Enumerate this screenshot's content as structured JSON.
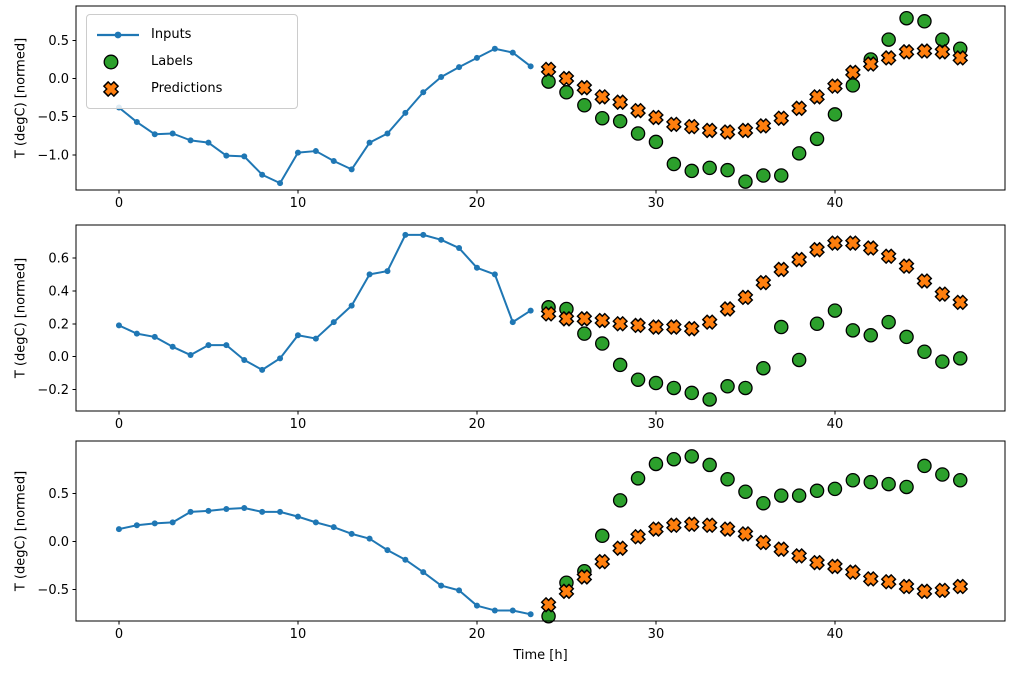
{
  "figure": {
    "background": "#ffffff"
  },
  "axes": {
    "ylabel": "T (degC) [normed]",
    "xlabel": "Time [h]",
    "x_ticks": [
      0,
      10,
      20,
      30,
      40
    ],
    "x_tick_labels": [
      "0",
      "10",
      "20",
      "30",
      "40"
    ],
    "frame_color": "#000000",
    "tick_label_color": "#000000"
  },
  "legend": {
    "items": [
      {
        "label": "Inputs",
        "marker": "line-dot",
        "color": "#1f77b4"
      },
      {
        "label": "Labels",
        "marker": "circle",
        "color": "#2ca02c",
        "edge": "#000000"
      },
      {
        "label": "Predictions",
        "marker": "X",
        "color": "#ff7f0e",
        "edge": "#000000"
      }
    ]
  },
  "chart_data": [
    {
      "type": "line+scatter",
      "name": "subplot-1",
      "ylabel": "T (degC) [normed]",
      "xlabel": "",
      "xlim": [
        -2.4,
        49.5
      ],
      "ylim": [
        -1.46,
        0.95
      ],
      "y_ticks": [
        0.5,
        0.0,
        -0.5,
        -1.0
      ],
      "y_tick_labels": [
        "0.5",
        "0.0",
        "−0.5",
        "−1.0"
      ],
      "series": [
        {
          "name": "Inputs",
          "type": "line",
          "marker": "dot",
          "color": "#1f77b4",
          "x": [
            0,
            1,
            2,
            3,
            4,
            5,
            6,
            7,
            8,
            9,
            10,
            11,
            12,
            13,
            14,
            15,
            16,
            17,
            18,
            19,
            20,
            21,
            22,
            23
          ],
          "y": [
            -0.38,
            -0.57,
            -0.73,
            -0.72,
            -0.81,
            -0.84,
            -1.01,
            -1.02,
            -1.26,
            -1.37,
            -0.97,
            -0.95,
            -1.08,
            -1.19,
            -0.84,
            -0.72,
            -0.45,
            -0.18,
            0.02,
            0.15,
            0.27,
            0.39,
            0.34,
            0.16
          ]
        },
        {
          "name": "Labels",
          "type": "scatter",
          "marker": "circle",
          "color": "#2ca02c",
          "edge": "#000000",
          "x": [
            24,
            25,
            26,
            27,
            28,
            29,
            30,
            31,
            32,
            33,
            34,
            35,
            36,
            37,
            38,
            39,
            40,
            41,
            42,
            43,
            44,
            45,
            46,
            47
          ],
          "y": [
            -0.04,
            -0.18,
            -0.35,
            -0.52,
            -0.56,
            -0.72,
            -0.83,
            -1.12,
            -1.21,
            -1.17,
            -1.2,
            -1.35,
            -1.27,
            -1.27,
            -0.98,
            -0.79,
            -0.47,
            -0.09,
            0.25,
            0.51,
            0.79,
            0.75,
            0.51,
            0.39
          ]
        },
        {
          "name": "Predictions",
          "type": "scatter",
          "marker": "X",
          "color": "#ff7f0e",
          "edge": "#000000",
          "x": [
            24,
            25,
            26,
            27,
            28,
            29,
            30,
            31,
            32,
            33,
            34,
            35,
            36,
            37,
            38,
            39,
            40,
            41,
            42,
            43,
            44,
            45,
            46,
            47
          ],
          "y": [
            0.12,
            0.0,
            -0.12,
            -0.24,
            -0.31,
            -0.42,
            -0.51,
            -0.6,
            -0.63,
            -0.68,
            -0.7,
            -0.68,
            -0.62,
            -0.52,
            -0.39,
            -0.24,
            -0.1,
            0.08,
            0.19,
            0.27,
            0.35,
            0.36,
            0.35,
            0.27
          ]
        }
      ]
    },
    {
      "type": "line+scatter",
      "name": "subplot-2",
      "ylabel": "T (degC) [normed]",
      "xlabel": "",
      "xlim": [
        -2.4,
        49.5
      ],
      "ylim": [
        -0.33,
        0.8
      ],
      "y_ticks": [
        0.6,
        0.4,
        0.2,
        0.0,
        -0.2
      ],
      "y_tick_labels": [
        "0.6",
        "0.4",
        "0.2",
        "0.0",
        "−0.2"
      ],
      "series": [
        {
          "name": "Inputs",
          "type": "line",
          "marker": "dot",
          "color": "#1f77b4",
          "x": [
            0,
            1,
            2,
            3,
            4,
            5,
            6,
            7,
            8,
            9,
            10,
            11,
            12,
            13,
            14,
            15,
            16,
            17,
            18,
            19,
            20,
            21,
            22,
            23
          ],
          "y": [
            0.19,
            0.14,
            0.12,
            0.06,
            0.01,
            0.07,
            0.07,
            -0.02,
            -0.08,
            -0.01,
            0.13,
            0.11,
            0.21,
            0.31,
            0.5,
            0.52,
            0.74,
            0.74,
            0.71,
            0.66,
            0.54,
            0.5,
            0.21,
            0.28
          ]
        },
        {
          "name": "Labels",
          "type": "scatter",
          "marker": "circle",
          "color": "#2ca02c",
          "edge": "#000000",
          "x": [
            24,
            25,
            26,
            27,
            28,
            29,
            30,
            31,
            32,
            33,
            34,
            35,
            36,
            37,
            38,
            39,
            40,
            41,
            42,
            43,
            44,
            45,
            46,
            47
          ],
          "y": [
            0.3,
            0.29,
            0.14,
            0.08,
            -0.05,
            -0.14,
            -0.16,
            -0.19,
            -0.22,
            -0.26,
            -0.18,
            -0.19,
            -0.07,
            0.18,
            -0.02,
            0.2,
            0.28,
            0.16,
            0.13,
            0.21,
            0.12,
            0.03,
            -0.03,
            -0.01
          ]
        },
        {
          "name": "Predictions",
          "type": "scatter",
          "marker": "X",
          "color": "#ff7f0e",
          "edge": "#000000",
          "x": [
            24,
            25,
            26,
            27,
            28,
            29,
            30,
            31,
            32,
            33,
            34,
            35,
            36,
            37,
            38,
            39,
            40,
            41,
            42,
            43,
            44,
            45,
            46,
            47
          ],
          "y": [
            0.26,
            0.23,
            0.23,
            0.22,
            0.2,
            0.19,
            0.18,
            0.18,
            0.17,
            0.21,
            0.29,
            0.36,
            0.45,
            0.53,
            0.59,
            0.65,
            0.69,
            0.69,
            0.66,
            0.61,
            0.55,
            0.46,
            0.38,
            0.33
          ]
        }
      ]
    },
    {
      "type": "line+scatter",
      "name": "subplot-3",
      "ylabel": "T (degC) [normed]",
      "xlabel": "Time [h]",
      "xlim": [
        -2.4,
        49.5
      ],
      "ylim": [
        -0.83,
        1.05
      ],
      "y_ticks": [
        0.5,
        0.0,
        -0.5
      ],
      "y_tick_labels": [
        "0.5",
        "0.0",
        "−0.5"
      ],
      "series": [
        {
          "name": "Inputs",
          "type": "line",
          "marker": "dot",
          "color": "#1f77b4",
          "x": [
            0,
            1,
            2,
            3,
            4,
            5,
            6,
            7,
            8,
            9,
            10,
            11,
            12,
            13,
            14,
            15,
            16,
            17,
            18,
            19,
            20,
            21,
            22,
            23
          ],
          "y": [
            0.13,
            0.17,
            0.19,
            0.2,
            0.31,
            0.32,
            0.34,
            0.35,
            0.31,
            0.31,
            0.26,
            0.2,
            0.15,
            0.08,
            0.03,
            -0.09,
            -0.19,
            -0.32,
            -0.46,
            -0.51,
            -0.67,
            -0.72,
            -0.72,
            -0.76
          ]
        },
        {
          "name": "Labels",
          "type": "scatter",
          "marker": "circle",
          "color": "#2ca02c",
          "edge": "#000000",
          "x": [
            24,
            25,
            26,
            27,
            28,
            29,
            30,
            31,
            32,
            33,
            34,
            35,
            36,
            37,
            38,
            39,
            40,
            41,
            42,
            43,
            44,
            45,
            46,
            47
          ],
          "y": [
            -0.78,
            -0.43,
            -0.31,
            0.06,
            0.43,
            0.66,
            0.81,
            0.86,
            0.89,
            0.8,
            0.65,
            0.52,
            0.4,
            0.48,
            0.48,
            0.53,
            0.55,
            0.64,
            0.62,
            0.6,
            0.57,
            0.79,
            0.7,
            0.64
          ]
        },
        {
          "name": "Predictions",
          "type": "scatter",
          "marker": "X",
          "color": "#ff7f0e",
          "edge": "#000000",
          "x": [
            24,
            25,
            26,
            27,
            28,
            29,
            30,
            31,
            32,
            33,
            34,
            35,
            36,
            37,
            38,
            39,
            40,
            41,
            42,
            43,
            44,
            45,
            46,
            47
          ],
          "y": [
            -0.66,
            -0.52,
            -0.37,
            -0.21,
            -0.07,
            0.05,
            0.13,
            0.17,
            0.18,
            0.17,
            0.13,
            0.08,
            -0.01,
            -0.08,
            -0.15,
            -0.22,
            -0.26,
            -0.32,
            -0.39,
            -0.42,
            -0.47,
            -0.52,
            -0.51,
            -0.47
          ]
        }
      ]
    }
  ]
}
